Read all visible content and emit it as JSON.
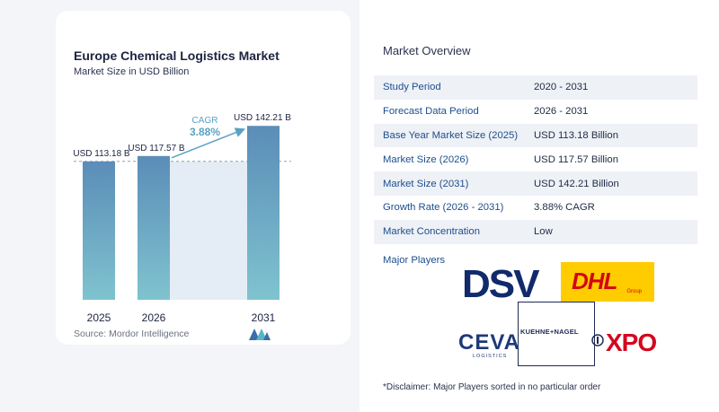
{
  "chart_data": {
    "type": "bar",
    "title": "Europe Chemical Logistics Market",
    "subtitle": "Market Size in USD Billion",
    "categories": [
      "2025",
      "2026",
      "2031"
    ],
    "values": [
      113.18,
      117.57,
      142.21
    ],
    "data_labels": [
      "USD 113.18 B",
      "USD 117.57 B",
      "USD 142.21 B"
    ],
    "cagr_label": "CAGR",
    "cagr_value": "3.88%",
    "ylim": [
      0,
      160
    ],
    "grid": false,
    "colors": {
      "bar": "#5b8db8",
      "bar_bottom": "#7fc3cf",
      "band": "#e4edf5",
      "arrow": "#5aa2c4",
      "cagr": "#5aa2c4"
    }
  },
  "source": "Source:  Mordor Intelligence",
  "overview": {
    "title": "Market Overview",
    "rows": [
      {
        "label": "Study Period",
        "value": "2020 - 2031"
      },
      {
        "label": "Forecast Data Period",
        "value": "2026 - 2031"
      },
      {
        "label": "Base Year Market Size (2025)",
        "value": "USD 113.18 Billion"
      },
      {
        "label": "Market Size (2026)",
        "value": "USD 117.57 Billion"
      },
      {
        "label": "Market Size (2031)",
        "value": "USD 142.21 Billion"
      },
      {
        "label": "Growth Rate (2026 - 2031)",
        "value": "3.88% CAGR"
      },
      {
        "label": "Market Concentration",
        "value": "Low"
      }
    ],
    "major_players_label": "Major Players",
    "players": {
      "dsv": "DSV",
      "dhl": "DHL",
      "dhl_sub": "Group",
      "kn": "KUEHNE+NAGEL",
      "ceva": "CEVA",
      "ceva_sub": "LOGISTICS",
      "xpo": "XPO"
    },
    "disclaimer": "*Disclaimer: Major Players sorted in no particular order"
  }
}
